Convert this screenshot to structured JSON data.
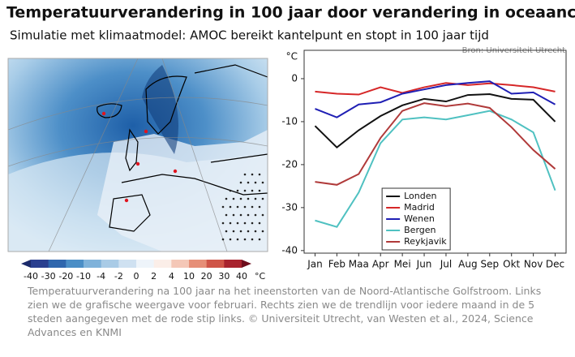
{
  "header": {
    "title": "Temperatuurverandering in 100 jaar door verandering in oceaancirculatie",
    "subtitle": "Simulatie met klimaatmodel: AMOC bereikt kantelpunt en stopt in 100 jaar tijd",
    "source": "Bron: Universiteit Utrecht"
  },
  "map": {
    "colorbar_ticks": [
      -40,
      -30,
      -20,
      -10,
      -4,
      -2,
      0,
      2,
      4,
      10,
      20,
      30,
      40
    ],
    "unit": "°C"
  },
  "chart_data": {
    "type": "line",
    "y_label": "°C",
    "categories": [
      "Jan",
      "Feb",
      "Maa",
      "Apr",
      "Mei",
      "Jun",
      "Jul",
      "Aug",
      "Sep",
      "Okt",
      "Nov",
      "Dec"
    ],
    "series": [
      {
        "name": "Londen",
        "color": "#111111",
        "values": [
          -11,
          -16,
          -12,
          -8.7,
          -6.2,
          -4.7,
          -5.3,
          -3.8,
          -3.6,
          -4.7,
          -4.9,
          -10
        ]
      },
      {
        "name": "Madrid",
        "color": "#d62728",
        "values": [
          -3,
          -3.5,
          -3.7,
          -2,
          -3.3,
          -2,
          -1,
          -1.5,
          -1.1,
          -1.5,
          -2,
          -3
        ]
      },
      {
        "name": "Wenen",
        "color": "#1f1fb4",
        "values": [
          -7,
          -9,
          -6,
          -5.5,
          -3.5,
          -2.5,
          -1.5,
          -1,
          -0.6,
          -3.5,
          -3.2,
          -6
        ]
      },
      {
        "name": "Bergen",
        "color": "#4fc1c1",
        "values": [
          -33,
          -34.5,
          -26.5,
          -15,
          -9.5,
          -9,
          -9.5,
          -8.5,
          -7.5,
          -9.5,
          -12.5,
          -26
        ]
      },
      {
        "name": "Reykjavik",
        "color": "#b03a3a",
        "values": [
          -24,
          -24.7,
          -22.2,
          -13.8,
          -7.5,
          -5.7,
          -6.4,
          -5.8,
          -6.8,
          -11.3,
          -16.6,
          -21
        ]
      }
    ],
    "ylim": [
      -40.6,
      6.6
    ],
    "yticks": [
      0,
      -10,
      -20,
      -30,
      -40
    ],
    "grid": false,
    "legend": "lower left"
  },
  "caption": "Temperatuurverandering na 100 jaar na het ineenstorten van de Noord-Atlantische Golfstroom. Links zien we de grafische weergave voor februari. Rechts zien we de trendlijn voor iedere maand in de 5 steden aangegeven met de rode stip links. © Universiteit Utrecht, van Westen et al., 2024, Science Advances en KNMI"
}
